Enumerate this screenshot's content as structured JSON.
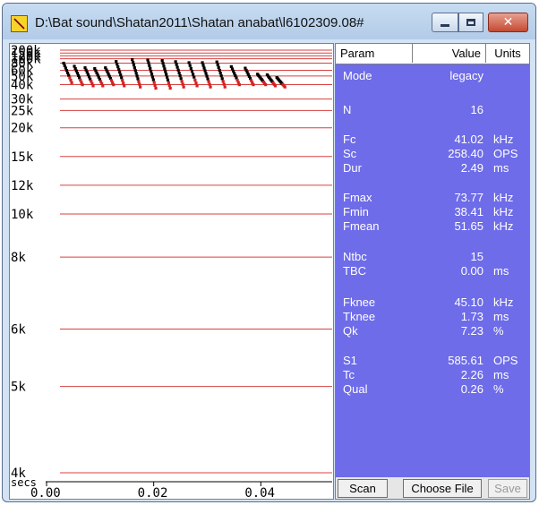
{
  "window": {
    "title": "D:\\Bat sound\\Shatan2011\\Shatan anabat\\l6102309.08#",
    "icons": {
      "app": "anabat-app-icon",
      "minimize": "minimize-icon",
      "maximize": "maximize-icon",
      "close": "close-icon"
    },
    "close_glyph": "✕"
  },
  "plot": {
    "y_labels": [
      "200k",
      "150k",
      "120k",
      "100k",
      "80k",
      "60k",
      "50k",
      "40k",
      "30k",
      "25k",
      "20k",
      "15k",
      "12k",
      "10k",
      "8k",
      "6k",
      "5k",
      "4k"
    ],
    "x_unit_label": "secs",
    "x_labels": [
      "0.00",
      "0.02",
      "0.04"
    ],
    "colors": {
      "grid": "#d84040",
      "pulse": "#000000",
      "pulse_end": "#d42020"
    }
  },
  "chart_data": {
    "type": "scatter",
    "title": "",
    "xlabel": "secs",
    "ylabel": "",
    "xlim": [
      0.0,
      0.0585
    ],
    "ylim_khz": [
      4,
      200
    ],
    "y_scale": "reciprocal (1/f)",
    "grid": true,
    "series": [
      {
        "pulses": [
          {
            "t": 0.0005,
            "f_start_khz": 80,
            "f_end_khz": 42
          },
          {
            "t": 0.0025,
            "f_start_khz": 70,
            "f_end_khz": 40
          },
          {
            "t": 0.0045,
            "f_start_khz": 66,
            "f_end_khz": 39
          },
          {
            "t": 0.0063,
            "f_start_khz": 64,
            "f_end_khz": 39
          },
          {
            "t": 0.0083,
            "f_start_khz": 66,
            "f_end_khz": 40
          },
          {
            "t": 0.0103,
            "f_start_khz": 87,
            "f_end_khz": 39
          },
          {
            "t": 0.0133,
            "f_start_khz": 96,
            "f_end_khz": 38
          },
          {
            "t": 0.0162,
            "f_start_khz": 94,
            "f_end_khz": 37
          },
          {
            "t": 0.0189,
            "f_start_khz": 91,
            "f_end_khz": 37
          },
          {
            "t": 0.0214,
            "f_start_khz": 86,
            "f_end_khz": 38
          },
          {
            "t": 0.0239,
            "f_start_khz": 82,
            "f_end_khz": 39
          },
          {
            "t": 0.0264,
            "f_start_khz": 82,
            "f_end_khz": 38
          },
          {
            "t": 0.0291,
            "f_start_khz": 85,
            "f_end_khz": 38
          },
          {
            "t": 0.0318,
            "f_start_khz": 69,
            "f_end_khz": 40
          },
          {
            "t": 0.0344,
            "f_start_khz": 65,
            "f_end_khz": 40
          },
          {
            "t": 0.0367,
            "f_start_khz": 53,
            "f_end_khz": 40
          },
          {
            "t": 0.0385,
            "f_start_khz": 52,
            "f_end_khz": 39
          },
          {
            "t": 0.0403,
            "f_start_khz": 48,
            "f_end_khz": 38
          }
        ]
      }
    ]
  },
  "panel": {
    "headers": {
      "param": "Param",
      "value": "Value",
      "units": "Units"
    },
    "rows": [
      {
        "param": "Mode",
        "value": "legacy",
        "unit": ""
      },
      {
        "param": "N",
        "value": "16",
        "unit": ""
      },
      {
        "param": "Fc",
        "value": "41.02",
        "unit": "kHz"
      },
      {
        "param": "Sc",
        "value": "258.40",
        "unit": "OPS"
      },
      {
        "param": "Dur",
        "value": "2.49",
        "unit": "ms"
      },
      {
        "param": "Fmax",
        "value": "73.77",
        "unit": "kHz"
      },
      {
        "param": "Fmin",
        "value": "38.41",
        "unit": "kHz"
      },
      {
        "param": "Fmean",
        "value": "51.65",
        "unit": "kHz"
      },
      {
        "param": "Ntbc",
        "value": "15",
        "unit": ""
      },
      {
        "param": "TBC",
        "value": "0.00",
        "unit": "ms"
      },
      {
        "param": "Fknee",
        "value": "45.10",
        "unit": "kHz"
      },
      {
        "param": "Tknee",
        "value": "1.73",
        "unit": "ms"
      },
      {
        "param": "Qk",
        "value": "7.23",
        "unit": "%"
      },
      {
        "param": "S1",
        "value": "585.61",
        "unit": "OPS"
      },
      {
        "param": "Tc",
        "value": "2.26",
        "unit": "ms"
      },
      {
        "param": "Qual",
        "value": "0.26",
        "unit": "%"
      }
    ],
    "buttons": {
      "scan": "Scan",
      "choose_file": "Choose File",
      "save": "Save"
    },
    "colors": {
      "panel_bg": "#6e6ce8",
      "text": "#ffffff"
    }
  }
}
